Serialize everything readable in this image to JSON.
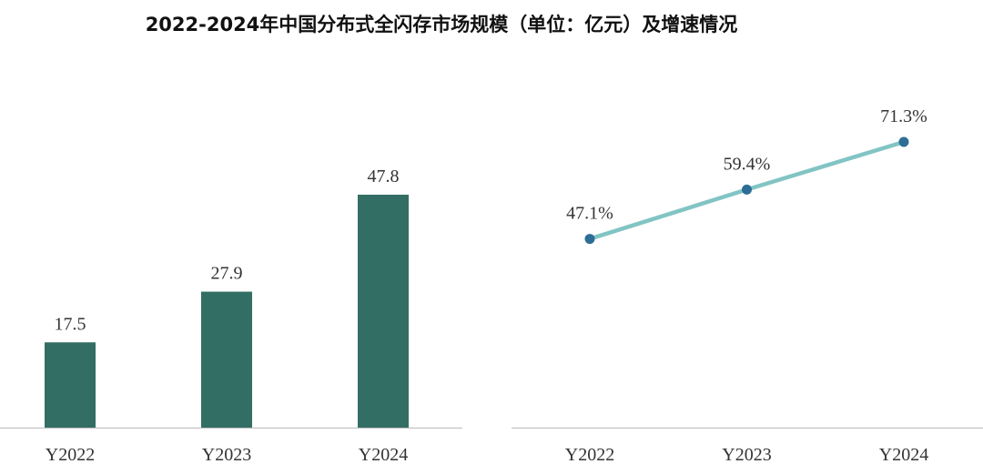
{
  "title": "2022-2024年中国分布式全闪存市场规模（单位：亿元）及增速情况",
  "chart_data": [
    {
      "type": "bar",
      "categories": [
        "Y2022",
        "Y2023",
        "Y2024"
      ],
      "values": [
        17.5,
        27.9,
        47.8
      ],
      "color": "#336e64"
    },
    {
      "type": "line",
      "categories": [
        "Y2022",
        "Y2023",
        "Y2024"
      ],
      "values": [
        47.1,
        59.4,
        71.3
      ],
      "value_labels": [
        "47.1%",
        "59.4%",
        "71.3%"
      ],
      "color": "#82c4c4",
      "marker_color": "#2e6e96"
    }
  ]
}
